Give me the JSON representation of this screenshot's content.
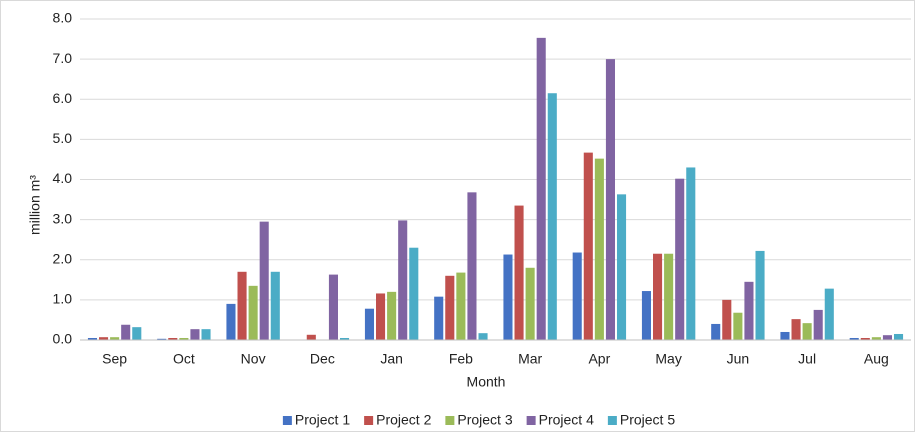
{
  "chart_data": {
    "type": "bar",
    "x_label": "Month",
    "y_label": "million m³",
    "categories": [
      "Sep",
      "Oct",
      "Nov",
      "Dec",
      "Jan",
      "Feb",
      "Mar",
      "Apr",
      "May",
      "Jun",
      "Jul",
      "Aug"
    ],
    "series": [
      {
        "name": "Project 1",
        "color": "#4472c4",
        "values": [
          0.05,
          0.03,
          0.9,
          0,
          0.78,
          1.08,
          2.13,
          2.18,
          1.22,
          0.4,
          0.2,
          0.05
        ]
      },
      {
        "name": "Project 2",
        "color": "#c0504d",
        "values": [
          0.07,
          0.05,
          1.7,
          0.13,
          1.16,
          1.6,
          3.35,
          4.67,
          2.15,
          1.0,
          0.52,
          0.05
        ]
      },
      {
        "name": "Project 3",
        "color": "#9bbb59",
        "values": [
          0.07,
          0.05,
          1.35,
          0,
          1.2,
          1.68,
          1.8,
          4.52,
          2.15,
          0.68,
          0.42,
          0.07
        ]
      },
      {
        "name": "Project 4",
        "color": "#8064a2",
        "values": [
          0.38,
          0.27,
          2.95,
          1.63,
          2.98,
          3.68,
          7.53,
          7.0,
          4.02,
          1.45,
          0.75,
          0.12
        ]
      },
      {
        "name": "Project 5",
        "color": "#4bacc6",
        "values": [
          0.32,
          0.27,
          1.7,
          0.05,
          2.3,
          0.17,
          6.15,
          3.63,
          4.3,
          2.22,
          1.28,
          0.15
        ]
      }
    ],
    "ylim": [
      0,
      8
    ],
    "yticks": [
      {
        "value": 0,
        "label": "0.0"
      },
      {
        "value": 1,
        "label": "1.0"
      },
      {
        "value": 2,
        "label": "2.0"
      },
      {
        "value": 3,
        "label": "3.0"
      },
      {
        "value": 4,
        "label": "4.0"
      },
      {
        "value": 5,
        "label": "5.0"
      },
      {
        "value": 6,
        "label": "6.0"
      },
      {
        "value": 7,
        "label": "7.0"
      },
      {
        "value": 8,
        "label": "8.0"
      }
    ],
    "grid": true,
    "legend": "bottom"
  }
}
